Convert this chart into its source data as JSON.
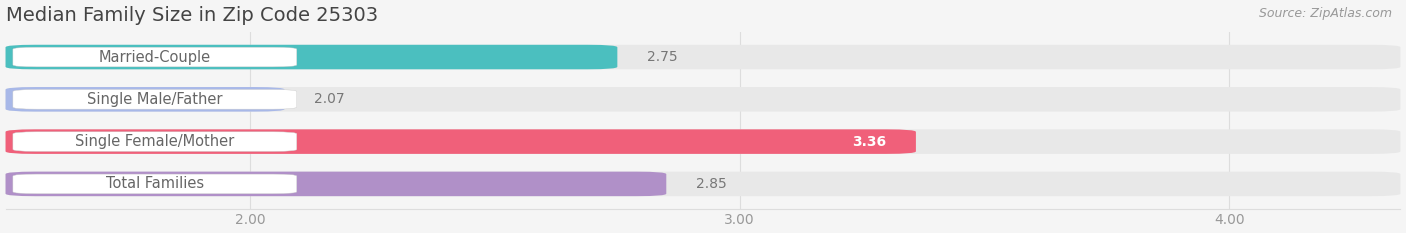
{
  "title": "Median Family Size in Zip Code 25303",
  "source": "Source: ZipAtlas.com",
  "categories": [
    "Married-Couple",
    "Single Male/Father",
    "Single Female/Mother",
    "Total Families"
  ],
  "values": [
    2.75,
    2.07,
    3.36,
    2.85
  ],
  "bar_colors": [
    "#4BBFBF",
    "#A8B8E8",
    "#F0607A",
    "#B090C8"
  ],
  "xlim_min": 1.5,
  "xlim_max": 4.35,
  "xticks": [
    2.0,
    3.0,
    4.0
  ],
  "xtick_labels": [
    "2.00",
    "3.00",
    "4.00"
  ],
  "bar_height": 0.58,
  "background_color": "#F5F5F5",
  "bar_bg_color": "#E8E8E8",
  "title_fontsize": 14,
  "label_fontsize": 10.5,
  "value_fontsize": 10,
  "source_fontsize": 9,
  "value_inside_color": "#FFFFFF",
  "value_outside_color": "#777777",
  "label_text_color": "#666666",
  "title_color": "#444444",
  "source_color": "#999999",
  "tick_color": "#999999",
  "grid_color": "#DDDDDD",
  "inside_value_threshold": 3.36
}
